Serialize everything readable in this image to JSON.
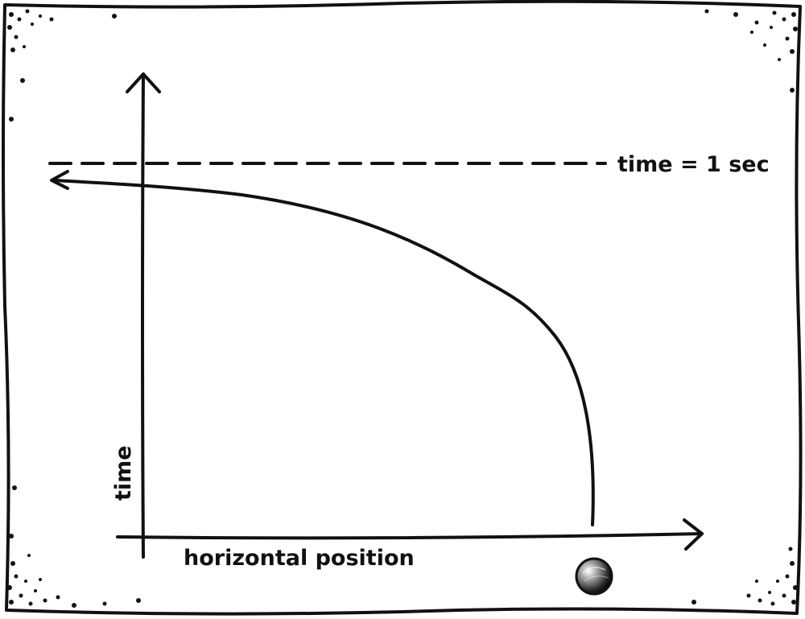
{
  "diagram": {
    "x_axis_label": "horizontal position",
    "y_axis_label": "time",
    "reference_line_label": "time = 1 sec"
  },
  "colors": {
    "ink": "#111111",
    "background": "#ffffff"
  }
}
